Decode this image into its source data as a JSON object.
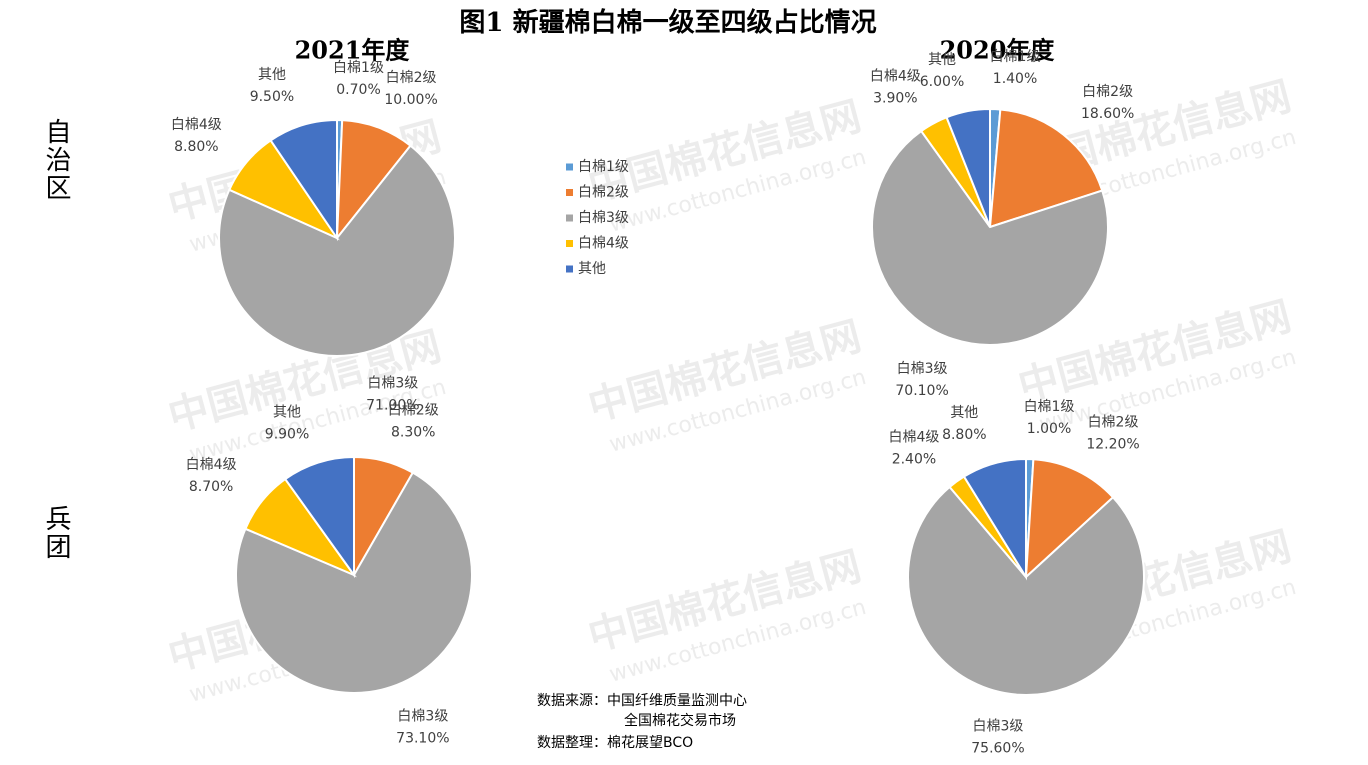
{
  "title": "图1 新疆棉白棉一级至四级占比情况",
  "column_labels": [
    "2021年度",
    "2020年度"
  ],
  "row_labels": [
    "自治区",
    "兵团"
  ],
  "watermark": {
    "name": "中国棉花信息网",
    "url": "www.cottonchina.org.cn"
  },
  "source": [
    "数据来源：中国纤维质量监测中心",
    "全国棉花交易市场",
    "数据整理：棉花展望BCO"
  ],
  "chart_data": [
    {
      "type": "pie",
      "categories": [
        "白棉1级",
        "白棉2级",
        "白棉3级",
        "白棉4级",
        "其他"
      ],
      "values": [
        0.7,
        10,
        71,
        8.8,
        9.5
      ],
      "value_labels": [
        "0.70%",
        "10.00%",
        "71.00%",
        "8.80%",
        "9.50%"
      ],
      "colors": [
        "#5b9bd5",
        "#ed7d31",
        "#a5a5a5",
        "#ffc000",
        "#4472c4"
      ],
      "legend": true
    },
    {
      "type": "pie",
      "categories": [
        "白棉1级",
        "白棉2级",
        "白棉3级",
        "白棉4级",
        "其他"
      ],
      "values": [
        1.4,
        18.6,
        70.1,
        3.9,
        6
      ],
      "value_labels": [
        "1.40%",
        "18.60%",
        "70.10%",
        "3.90%",
        "6.00%"
      ],
      "colors": [
        "#5b9bd5",
        "#ed7d31",
        "#a5a5a5",
        "#ffc000",
        "#4472c4"
      ]
    },
    {
      "type": "pie",
      "categories": [
        "白棉2级",
        "白棉3级",
        "白棉4级",
        "其他"
      ],
      "values": [
        8.3,
        73.1,
        8.7,
        9.9
      ],
      "value_labels": [
        "8.30%",
        "73.10%",
        "8.70%",
        "9.90%"
      ],
      "colors": [
        "#ed7d31",
        "#a5a5a5",
        "#ffc000",
        "#4472c4"
      ]
    },
    {
      "type": "pie",
      "categories": [
        "白棉1级",
        "白棉2级",
        "白棉3级",
        "白棉4级",
        "其他"
      ],
      "values": [
        1,
        12.2,
        75.6,
        2.4,
        8.8
      ],
      "value_labels": [
        "1.00%",
        "12.20%",
        "75.60%",
        "2.40%",
        "8.80%"
      ],
      "colors": [
        "#5b9bd5",
        "#ed7d31",
        "#a5a5a5",
        "#ffc000",
        "#4472c4"
      ]
    }
  ]
}
